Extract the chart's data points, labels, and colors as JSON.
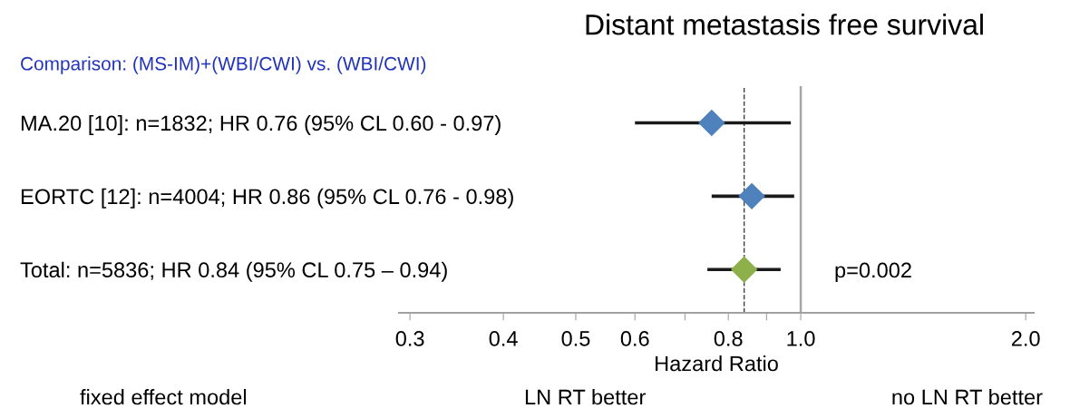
{
  "chart_data": {
    "type": "scatter",
    "orientation": "horizontal",
    "title": "Distant metastasis free survival",
    "subtitle": "Comparison: (MS-IM)+(WBI/CWI) vs. (WBI/CWI)",
    "xlabel": "Hazard Ratio",
    "categories": [
      "MA.20 [10]: n=1832; HR 0.76 (95% CL 0.60 - 0.97)",
      "EORTC [12]: n=4004; HR 0.86 (95% CL 0.76 - 0.98)",
      "Total: n=5836; HR 0.84 (95% CL 0.75 – 0.94)"
    ],
    "values": [
      0.76,
      0.86,
      0.84
    ],
    "errors": [
      [
        0.6,
        0.97
      ],
      [
        0.76,
        0.98
      ],
      [
        0.75,
        0.94
      ]
    ],
    "colors": [
      "#4f81bd",
      "#4f81bd",
      "#8db04a"
    ],
    "marker": "diamond",
    "log": "x",
    "xlim": [
      0.29,
      2.05
    ],
    "xticks": [
      0.3,
      0.4,
      0.5,
      0.6,
      {
        "value": 0.7,
        "label": null
      },
      0.8,
      {
        "value": 0.9,
        "label": null
      },
      {
        "value": 1,
        "label": "1.0"
      },
      {
        "value": 2,
        "label": "2.0"
      }
    ],
    "ref_lines": [
      {
        "axis": "x",
        "value": 1,
        "color": "#a6a6a6",
        "line_style": "solid"
      },
      {
        "axis": "x",
        "value": 0.84,
        "color": "#404040",
        "line_style": "dashed"
      }
    ],
    "annotations": [
      "p=0.002",
      "fixed effect model",
      "LN RT better",
      "no LN RT better"
    ],
    "grid": false
  }
}
